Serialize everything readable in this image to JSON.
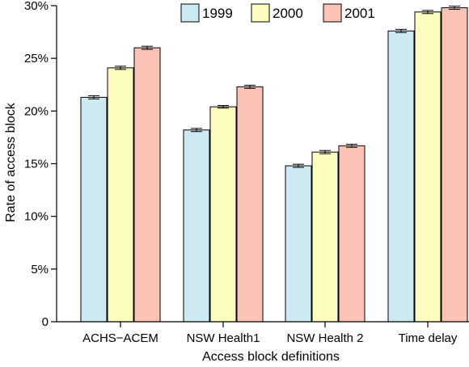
{
  "chart_data": {
    "type": "bar",
    "title": "",
    "xlabel": "Access block definitions",
    "ylabel": "Rate of access block",
    "categories": [
      "ACHS−ACEM",
      "NSW Health1",
      "NSW Health 2",
      "Time delay"
    ],
    "ylim": [
      0,
      30
    ],
    "yticks": [
      "0",
      "5%",
      "10%",
      "15%",
      "20%",
      "25%",
      "30%"
    ],
    "ytick_values": [
      0,
      5,
      10,
      15,
      20,
      25,
      30
    ],
    "grid": false,
    "legend_position": "top",
    "error_bars": true,
    "series": [
      {
        "name": "1999",
        "color": "#cdeaf2",
        "values": [
          21.3,
          18.2,
          14.8,
          27.6
        ],
        "errors": [
          0.15,
          0.15,
          0.15,
          0.15
        ]
      },
      {
        "name": "2000",
        "color": "#fdfdc0",
        "values": [
          24.1,
          20.4,
          16.1,
          29.4
        ],
        "errors": [
          0.15,
          0.12,
          0.15,
          0.15
        ]
      },
      {
        "name": "2001",
        "color": "#fbc3b6",
        "values": [
          26.0,
          22.3,
          16.7,
          29.8
        ],
        "errors": [
          0.15,
          0.15,
          0.15,
          0.15
        ]
      }
    ]
  }
}
